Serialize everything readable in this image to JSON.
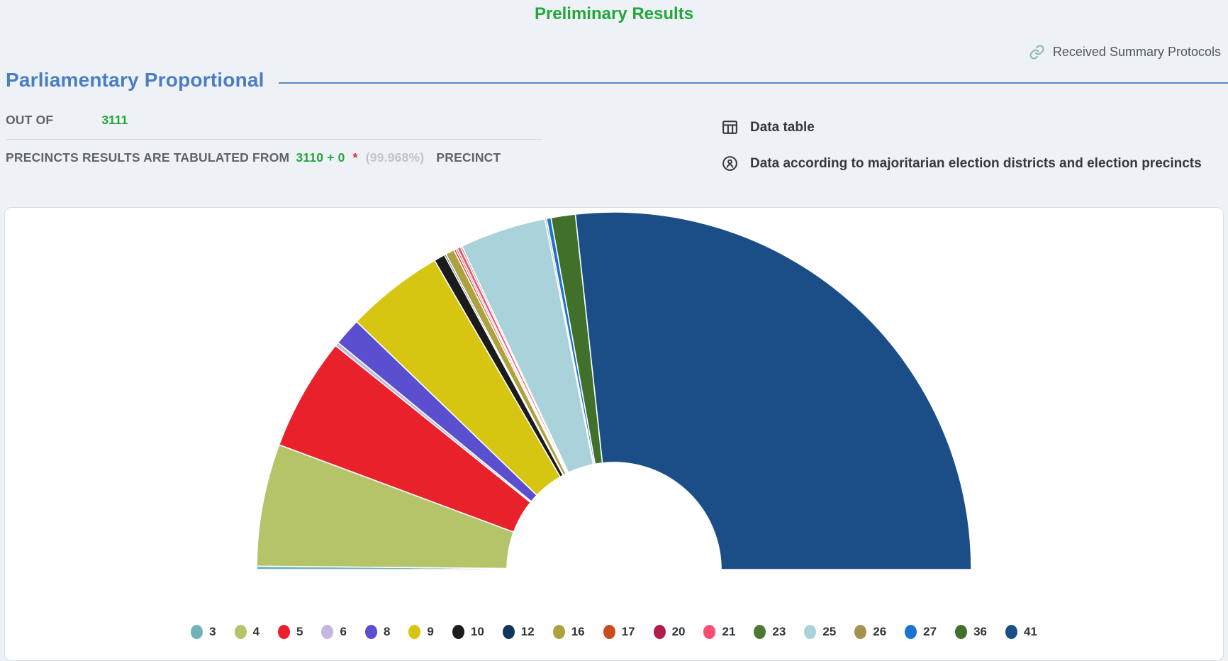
{
  "page": {
    "title": "Preliminary Results",
    "protocols_link": "Received Summary Protocols",
    "section_title": "Parliamentary Proportional"
  },
  "summary": {
    "out_of_label": "OUT OF",
    "out_of_value": "3111",
    "tabulated_label": "PRECINCTS RESULTS ARE TABULATED FROM",
    "tabulated_value": "3110 + 0",
    "asterisk": "*",
    "tabulated_percent": "(99.968%)",
    "precinct_label": "PRECINCT"
  },
  "links": {
    "data_table": "Data table",
    "majoritarian": "Data according to majoritarian election districts and election precincts"
  },
  "colors": {
    "title_green": "#23a63c",
    "value_green": "#22a63c",
    "heading_blue": "#4a7ec4",
    "asterisk_red": "#e8212a",
    "muted_gray": "#bfc4c9",
    "text_dark": "#33393e",
    "page_background": "#eef2f6",
    "card_background": "#ffffff"
  },
  "chart_data": {
    "type": "half-donut",
    "title": "",
    "legend_position": "bottom",
    "note": "Semicircular donut of party vote shares; segments ordered by ballot number, no numeric labels shown. Shares estimated from arc angles (percent of total).",
    "series": [
      {
        "number": "3",
        "color": "#6fb3b8",
        "share": 0.3
      },
      {
        "number": "4",
        "color": "#b5c369",
        "share": 11.05
      },
      {
        "number": "5",
        "color": "#e8212a",
        "share": 10.2
      },
      {
        "number": "6",
        "color": "#c4b6e3",
        "share": 0.35
      },
      {
        "number": "8",
        "color": "#5a4fcf",
        "share": 2.5
      },
      {
        "number": "9",
        "color": "#d6c511",
        "share": 8.85
      },
      {
        "number": "10",
        "color": "#1b1b1b",
        "share": 1.0
      },
      {
        "number": "12",
        "color": "#12365c",
        "share": 0.15
      },
      {
        "number": "16",
        "color": "#ada23f",
        "share": 0.8
      },
      {
        "number": "17",
        "color": "#cb4a1e",
        "share": 0.2
      },
      {
        "number": "20",
        "color": "#b01e4b",
        "share": 0.15
      },
      {
        "number": "21",
        "color": "#fa4d71",
        "share": 0.3
      },
      {
        "number": "23",
        "color": "#4b7a32",
        "share": 0.15
      },
      {
        "number": "25",
        "color": "#a9d2da",
        "share": 7.8
      },
      {
        "number": "26",
        "color": "#a5924d",
        "share": 0.15
      },
      {
        "number": "27",
        "color": "#1a75d2",
        "share": 0.4
      },
      {
        "number": "36",
        "color": "#41702b",
        "share": 2.2
      },
      {
        "number": "41",
        "color": "#1b4e87",
        "share": 53.45
      }
    ]
  }
}
